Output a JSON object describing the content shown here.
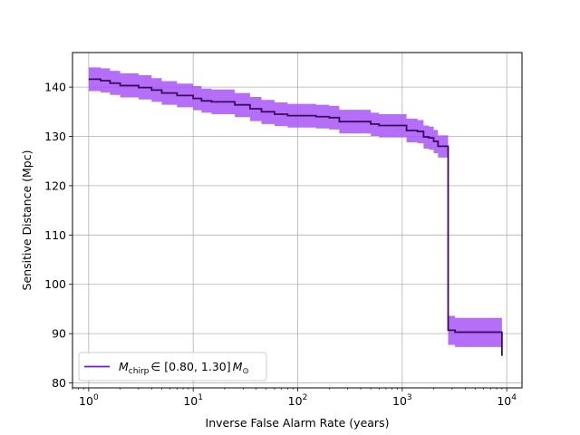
{
  "chart_data": {
    "type": "line",
    "title": "",
    "xlabel": "Inverse False Alarm Rate (years)",
    "ylabel": "Sensitive Distance (Mpc)",
    "xscale": "log",
    "xlim": [
      0.7,
      14000
    ],
    "ylim": [
      79,
      147
    ],
    "x_ticks": [
      1,
      10,
      100,
      1000,
      10000
    ],
    "x_tick_labels": [
      {
        "base": "10",
        "exp": "0"
      },
      {
        "base": "10",
        "exp": "1"
      },
      {
        "base": "10",
        "exp": "2"
      },
      {
        "base": "10",
        "exp": "3"
      },
      {
        "base": "10",
        "exp": "4"
      }
    ],
    "y_ticks": [
      80,
      90,
      100,
      110,
      120,
      130,
      140
    ],
    "y_tick_labels": [
      "80",
      "90",
      "100",
      "110",
      "120",
      "130",
      "140"
    ],
    "grid": true,
    "legend_position": "bottom-left",
    "colors": {
      "line": "#3b0a5c",
      "band": "#a855f7",
      "legend_line": "#7c10e8",
      "grid": "#b0b0b0"
    },
    "series": [
      {
        "name": "M_chirp ∈ [0.80, 1.30] M_⊙",
        "legend": {
          "symbol": "M",
          "symbol_sub": "chirp",
          "middle": "∈ [0.80, 1.30]",
          "end_symbol": "M",
          "end_sub": "⊙"
        },
        "step": true,
        "x": [
          1.0,
          1.3,
          1.6,
          2.0,
          3.0,
          4.0,
          5.0,
          7.0,
          10.0,
          12.0,
          15.0,
          25.0,
          35.0,
          45.0,
          60.0,
          80.0,
          100.0,
          150.0,
          200.0,
          250.0,
          400.0,
          500.0,
          600.0,
          1000.0,
          1100.0,
          1400.0,
          1600.0,
          1800.0,
          2000.0,
          2200.0,
          2450.0,
          2750.0,
          3200.0,
          8000.0,
          9000.0
        ],
        "y": [
          141.6,
          141.3,
          140.8,
          140.3,
          139.9,
          139.4,
          138.8,
          138.3,
          137.7,
          137.2,
          137.0,
          136.4,
          135.6,
          135.0,
          134.5,
          134.2,
          134.2,
          134.0,
          133.8,
          133.0,
          133.0,
          132.5,
          132.2,
          132.2,
          131.2,
          131.0,
          129.9,
          129.7,
          129.0,
          128.0,
          128.0,
          90.7,
          90.3,
          90.3,
          85.5
        ],
        "upper": [
          144.0,
          143.8,
          143.3,
          142.8,
          142.4,
          141.8,
          141.2,
          140.7,
          140.2,
          139.7,
          139.5,
          138.8,
          138.0,
          137.4,
          136.9,
          136.6,
          136.6,
          136.4,
          136.2,
          135.4,
          135.4,
          134.8,
          134.5,
          134.5,
          133.6,
          133.3,
          132.2,
          132.0,
          131.3,
          130.2,
          130.2,
          93.6,
          93.2,
          93.2,
          88.5
        ],
        "lower": [
          139.2,
          138.9,
          138.4,
          137.9,
          137.5,
          137.0,
          136.4,
          135.9,
          135.3,
          134.8,
          134.5,
          133.9,
          133.1,
          132.5,
          132.1,
          131.8,
          131.8,
          131.6,
          131.4,
          130.6,
          130.6,
          130.1,
          129.8,
          129.8,
          128.8,
          128.6,
          127.5,
          127.3,
          126.6,
          125.7,
          125.7,
          87.7,
          87.3,
          87.3,
          82.2
        ]
      }
    ]
  }
}
